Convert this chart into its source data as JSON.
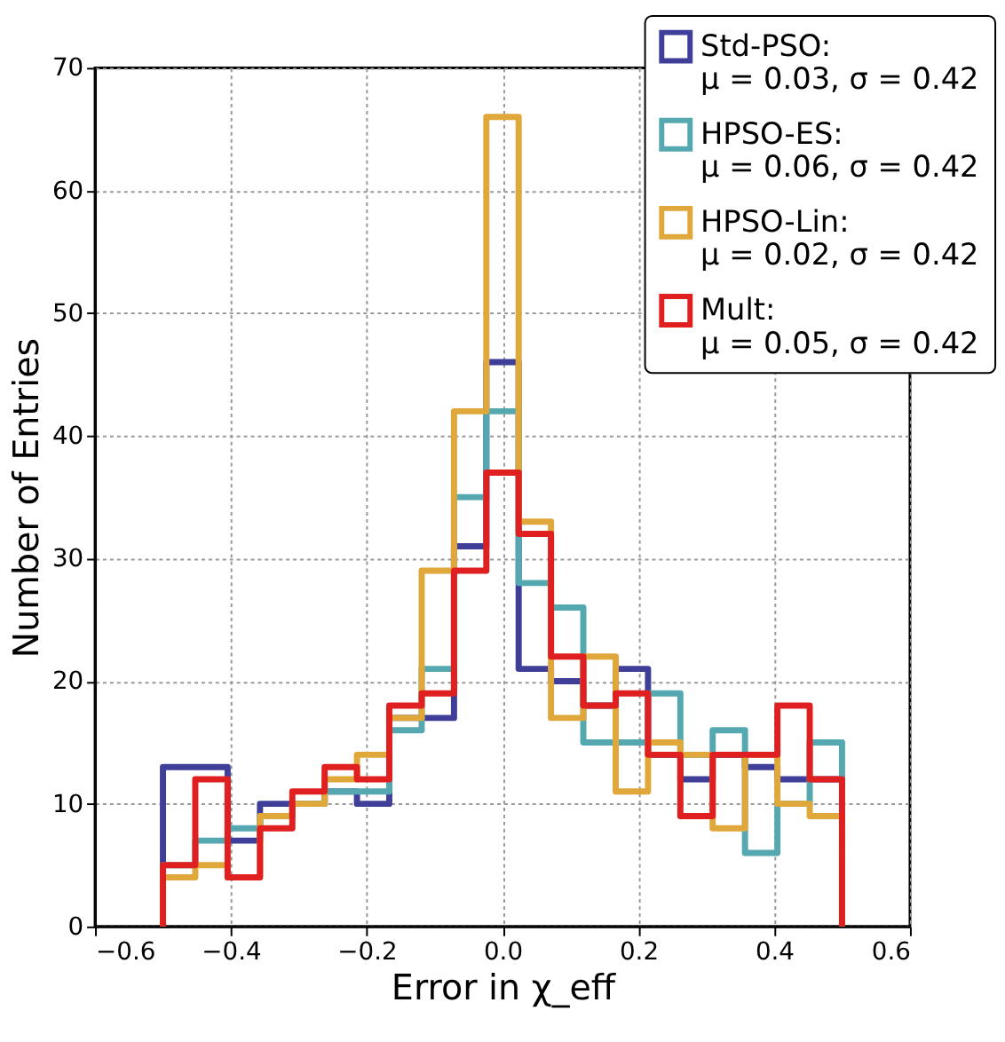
{
  "chart_data": {
    "type": "histogram",
    "xlabel": "Error in χ_eff",
    "ylabel": "Number of Entries",
    "bins": [
      -0.5,
      -0.4524,
      -0.4048,
      -0.3571,
      -0.3095,
      -0.2619,
      -0.2143,
      -0.1667,
      -0.119,
      -0.0714,
      -0.0238,
      0.0238,
      0.0714,
      0.119,
      0.1667,
      0.2143,
      0.2619,
      0.3095,
      0.3571,
      0.4048,
      0.4524,
      0.5
    ],
    "series": [
      {
        "name": "Std-PSO:\nμ = 0.03, σ = 0.42",
        "color": "#3f3f9a",
        "values": [
          13,
          13,
          7,
          10,
          10,
          11,
          10,
          17,
          17,
          31,
          46,
          21,
          20,
          18,
          21,
          14,
          12,
          14,
          13,
          12,
          12
        ]
      },
      {
        "name": "HPSO-ES:\nμ = 0.06, σ = 0.42",
        "color": "#55a8b0",
        "values": [
          5,
          7,
          8,
          9,
          10,
          11,
          11,
          16,
          21,
          35,
          42,
          28,
          26,
          15,
          15,
          19,
          14,
          16,
          6,
          10,
          15
        ]
      },
      {
        "name": "HPSO-Lin:\nμ = 0.02, σ = 0.42",
        "color": "#e0a83a",
        "values": [
          4,
          5,
          4,
          9,
          10,
          12,
          14,
          17,
          29,
          42,
          66,
          33,
          17,
          22,
          11,
          15,
          14,
          8,
          14,
          10,
          9
        ]
      },
      {
        "name": "Mult:\nμ = 0.05, σ = 0.42",
        "color": "#e02020",
        "values": [
          5,
          12,
          4,
          8,
          11,
          13,
          12,
          18,
          19,
          29,
          37,
          32,
          22,
          18,
          19,
          14,
          9,
          14,
          14,
          18,
          12
        ]
      }
    ],
    "xlim": [
      -0.6,
      0.6
    ],
    "xticks": [
      {
        "value": -0.6,
        "label": "−0.6"
      },
      {
        "value": -0.4,
        "label": "−0.4"
      },
      {
        "value": -0.2,
        "label": "−0.2"
      },
      {
        "value": 0,
        "label": "0.0"
      },
      {
        "value": 0.2,
        "label": "0.2"
      },
      {
        "value": 0.4,
        "label": "0.4"
      },
      {
        "value": 0.6,
        "label": "0.6"
      }
    ],
    "ylim": [
      0,
      70
    ],
    "yticks": [
      0,
      10,
      20,
      30,
      40,
      50,
      60,
      70
    ],
    "grid": true,
    "legend": "top right",
    "line_style": "solid"
  }
}
